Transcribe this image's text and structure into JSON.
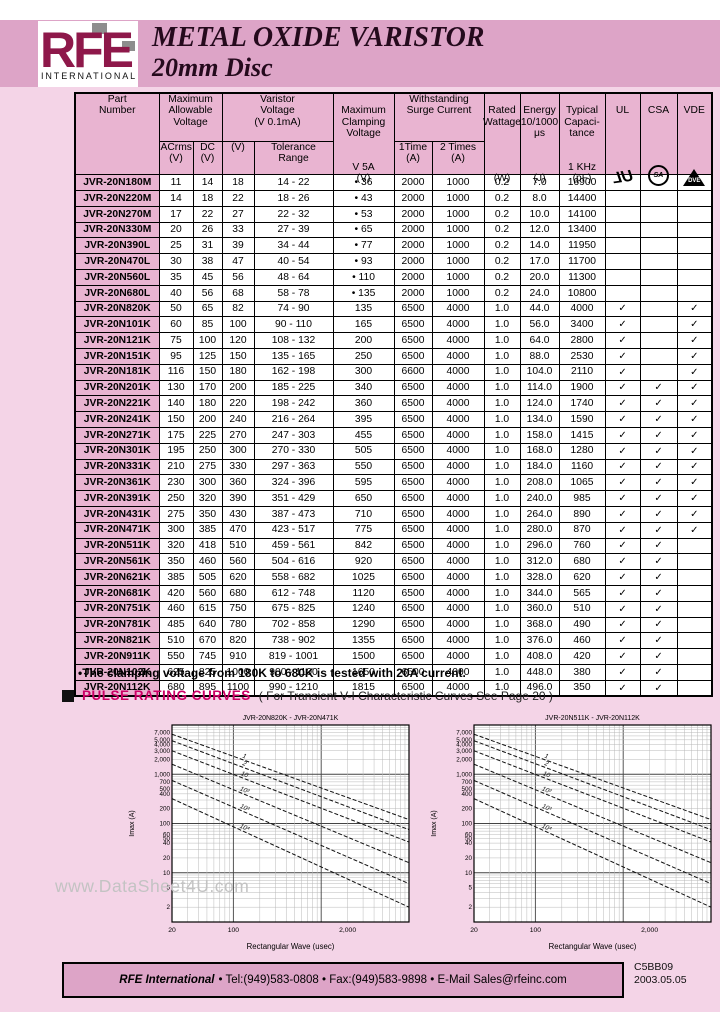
{
  "page": {
    "bg": "#f4d4e7",
    "band_bg": "#dda4c7",
    "accent": "#cc0066",
    "logo_color": "#8e184a",
    "logo_gray": "#8d8d8d"
  },
  "header": {
    "logo_text": "RFE",
    "logo_sub": "INTERNATIONAL",
    "title_line1": "METAL OXIDE VARISTOR",
    "title_line2": "20mm Disc"
  },
  "table": {
    "headers": {
      "part": "Part\nNumber",
      "max_allow": "Maximum\nAllowable\nVoltage",
      "varistor": "Varistor\nVoltage\n(V 0.1mA)",
      "clamping": "Maximum\nClamping\nVoltage",
      "clamp_sub": "V 5A\n(V)",
      "withstanding": "Withstanding\nSurge Current",
      "rated": "Rated\nWattage",
      "rated_unit": "(W)",
      "energy": "Energy\n10/1000\nμs",
      "energy_unit": "(J)",
      "typical": "Typical\nCapaci-\ntance",
      "typical_unit": "1 KHz\n(pF)",
      "acrms": "ACrms\n(V)",
      "dc": "DC\n(V)",
      "v": "(V)",
      "tolerance": "Tolerance\nRange",
      "time1": "1Time\n(A)",
      "time2": "2 Times\n(A)",
      "ul": "UL",
      "csa": "CSA",
      "vde": "VDE"
    },
    "icons": {
      "ul_logo": "UL",
      "csa_logo": "SA",
      "vde_logo": "DVE"
    },
    "rows": [
      [
        "JVR-20N180M",
        "11",
        "14",
        "18",
        "14 - 22",
        "•  36",
        "2000",
        "1000",
        "0.2",
        "7.0",
        "16900",
        "",
        "",
        ""
      ],
      [
        "JVR-20N220M",
        "14",
        "18",
        "22",
        "18 - 26",
        "•  43",
        "2000",
        "1000",
        "0.2",
        "8.0",
        "14400",
        "",
        "",
        ""
      ],
      [
        "JVR-20N270M",
        "17",
        "22",
        "27",
        "22 - 32",
        "•  53",
        "2000",
        "1000",
        "0.2",
        "10.0",
        "14100",
        "",
        "",
        ""
      ],
      [
        "JVR-20N330M",
        "20",
        "26",
        "33",
        "27 - 39",
        "•  65",
        "2000",
        "1000",
        "0.2",
        "12.0",
        "13400",
        "",
        "",
        ""
      ],
      [
        "JVR-20N390L",
        "25",
        "31",
        "39",
        "34 - 44",
        "•  77",
        "2000",
        "1000",
        "0.2",
        "14.0",
        "11950",
        "",
        "",
        ""
      ],
      [
        "JVR-20N470L",
        "30",
        "38",
        "47",
        "40 - 54",
        "•  93",
        "2000",
        "1000",
        "0.2",
        "17.0",
        "11700",
        "",
        "",
        ""
      ],
      [
        "JVR-20N560L",
        "35",
        "45",
        "56",
        "48 - 64",
        "•  110",
        "2000",
        "1000",
        "0.2",
        "20.0",
        "11300",
        "",
        "",
        ""
      ],
      [
        "JVR-20N680L",
        "40",
        "56",
        "68",
        "58 - 78",
        "•  135",
        "2000",
        "1000",
        "0.2",
        "24.0",
        "10800",
        "",
        "",
        ""
      ],
      [
        "JVR-20N820K",
        "50",
        "65",
        "82",
        "74 - 90",
        "135",
        "6500",
        "4000",
        "1.0",
        "44.0",
        "4000",
        "✓",
        "",
        "✓"
      ],
      [
        "JVR-20N101K",
        "60",
        "85",
        "100",
        "90 - 110",
        "165",
        "6500",
        "4000",
        "1.0",
        "56.0",
        "3400",
        "✓",
        "",
        "✓"
      ],
      [
        "JVR-20N121K",
        "75",
        "100",
        "120",
        "108 - 132",
        "200",
        "6500",
        "4000",
        "1.0",
        "64.0",
        "2800",
        "✓",
        "",
        "✓"
      ],
      [
        "JVR-20N151K",
        "95",
        "125",
        "150",
        "135 - 165",
        "250",
        "6500",
        "4000",
        "1.0",
        "88.0",
        "2530",
        "✓",
        "",
        "✓"
      ],
      [
        "JVR-20N181K",
        "116",
        "150",
        "180",
        "162 - 198",
        "300",
        "6600",
        "4000",
        "1.0",
        "104.0",
        "2110",
        "✓",
        "",
        "✓"
      ],
      [
        "JVR-20N201K",
        "130",
        "170",
        "200",
        "185 - 225",
        "340",
        "6500",
        "4000",
        "1.0",
        "114.0",
        "1900",
        "✓",
        "✓",
        "✓"
      ],
      [
        "JVR-20N221K",
        "140",
        "180",
        "220",
        "198 - 242",
        "360",
        "6500",
        "4000",
        "1.0",
        "124.0",
        "1740",
        "✓",
        "✓",
        "✓"
      ],
      [
        "JVR-20N241K",
        "150",
        "200",
        "240",
        "216 - 264",
        "395",
        "6500",
        "4000",
        "1.0",
        "134.0",
        "1590",
        "✓",
        "✓",
        "✓"
      ],
      [
        "JVR-20N271K",
        "175",
        "225",
        "270",
        "247 - 303",
        "455",
        "6500",
        "4000",
        "1.0",
        "158.0",
        "1415",
        "✓",
        "✓",
        "✓"
      ],
      [
        "JVR-20N301K",
        "195",
        "250",
        "300",
        "270 - 330",
        "505",
        "6500",
        "4000",
        "1.0",
        "168.0",
        "1280",
        "✓",
        "✓",
        "✓"
      ],
      [
        "JVR-20N331K",
        "210",
        "275",
        "330",
        "297 - 363",
        "550",
        "6500",
        "4000",
        "1.0",
        "184.0",
        "1160",
        "✓",
        "✓",
        "✓"
      ],
      [
        "JVR-20N361K",
        "230",
        "300",
        "360",
        "324 - 396",
        "595",
        "6500",
        "4000",
        "1.0",
        "208.0",
        "1065",
        "✓",
        "✓",
        "✓"
      ],
      [
        "JVR-20N391K",
        "250",
        "320",
        "390",
        "351 - 429",
        "650",
        "6500",
        "4000",
        "1.0",
        "240.0",
        "985",
        "✓",
        "✓",
        "✓"
      ],
      [
        "JVR-20N431K",
        "275",
        "350",
        "430",
        "387 - 473",
        "710",
        "6500",
        "4000",
        "1.0",
        "264.0",
        "890",
        "✓",
        "✓",
        "✓"
      ],
      [
        "JVR-20N471K",
        "300",
        "385",
        "470",
        "423 - 517",
        "775",
        "6500",
        "4000",
        "1.0",
        "280.0",
        "870",
        "✓",
        "✓",
        "✓"
      ],
      [
        "JVR-20N511K",
        "320",
        "418",
        "510",
        "459 - 561",
        "842",
        "6500",
        "4000",
        "1.0",
        "296.0",
        "760",
        "✓",
        "✓",
        ""
      ],
      [
        "JVR-20N561K",
        "350",
        "460",
        "560",
        "504 - 616",
        "920",
        "6500",
        "4000",
        "1.0",
        "312.0",
        "680",
        "✓",
        "✓",
        ""
      ],
      [
        "JVR-20N621K",
        "385",
        "505",
        "620",
        "558 - 682",
        "1025",
        "6500",
        "4000",
        "1.0",
        "328.0",
        "620",
        "✓",
        "✓",
        ""
      ],
      [
        "JVR-20N681K",
        "420",
        "560",
        "680",
        "612 - 748",
        "1120",
        "6500",
        "4000",
        "1.0",
        "344.0",
        "565",
        "✓",
        "✓",
        ""
      ],
      [
        "JVR-20N751K",
        "460",
        "615",
        "750",
        "675 - 825",
        "1240",
        "6500",
        "4000",
        "1.0",
        "360.0",
        "510",
        "✓",
        "✓",
        ""
      ],
      [
        "JVR-20N781K",
        "485",
        "640",
        "780",
        "702 - 858",
        "1290",
        "6500",
        "4000",
        "1.0",
        "368.0",
        "490",
        "✓",
        "✓",
        ""
      ],
      [
        "JVR-20N821K",
        "510",
        "670",
        "820",
        "738 - 902",
        "1355",
        "6500",
        "4000",
        "1.0",
        "376.0",
        "460",
        "✓",
        "✓",
        ""
      ],
      [
        "JVR-20N911K",
        "550",
        "745",
        "910",
        "819 - 1001",
        "1500",
        "6500",
        "4000",
        "1.0",
        "408.0",
        "420",
        "✓",
        "✓",
        ""
      ],
      [
        "JVR-20N102K",
        "625",
        "825",
        "1000",
        "900 - 1100",
        "1650",
        "6500",
        "4000",
        "1.0",
        "448.0",
        "380",
        "✓",
        "✓",
        ""
      ],
      [
        "JVR-20N112K",
        "680",
        "895",
        "1100",
        "990 - 1210",
        "1815",
        "6500",
        "4000",
        "1.0",
        "496.0",
        "350",
        "✓",
        "✓",
        ""
      ]
    ]
  },
  "footnote": "•The clamping voltage from 180K to 680K is tested with 20A current.",
  "section": {
    "title": "PULSE RATING CURVES",
    "subtitle": "( For Transient V-I Characteristic Curves See Page 20 )"
  },
  "watermark": "www.DataSheet4U.com",
  "chart_data": [
    {
      "type": "line",
      "title": "JVR-20N820K - JVR-20N471K",
      "xlabel": "Rectangular Wave (usec)",
      "ylabel": "Imax (A)",
      "x_ticks": [
        "20",
        "100",
        "2,000"
      ],
      "y_ticks": [
        "7,000",
        "5,000",
        "4,000",
        "3,000",
        "2,000",
        "1,000",
        "700",
        "500",
        "400",
        "200",
        "100",
        "60",
        "50",
        "40",
        "20",
        "10",
        "5",
        "2"
      ],
      "xlim_log": [
        20,
        10000
      ],
      "ylim_log": [
        1,
        10000
      ],
      "grid": "log",
      "legend": "none",
      "series": [
        {
          "name": "1",
          "x": [
            20,
            10000
          ],
          "y": [
            6500,
            120
          ]
        },
        {
          "name": "2",
          "x": [
            20,
            10000
          ],
          "y": [
            4800,
            75
          ]
        },
        {
          "name": "10",
          "x": [
            20,
            10000
          ],
          "y": [
            3000,
            42
          ]
        },
        {
          "name": "10²",
          "x": [
            20,
            10000
          ],
          "y": [
            1600,
            16
          ]
        },
        {
          "name": "10³",
          "x": [
            20,
            10000
          ],
          "y": [
            750,
            6
          ]
        },
        {
          "name": "10⁴",
          "x": [
            20,
            10000
          ],
          "y": [
            320,
            2
          ]
        }
      ]
    },
    {
      "type": "line",
      "title": "JVR-20N511K - JVR-20N112K",
      "xlabel": "Rectangular Wave (usec)",
      "ylabel": "Imax (A)",
      "x_ticks": [
        "20",
        "100",
        "2,000"
      ],
      "y_ticks": [
        "7,000",
        "5,000",
        "4,000",
        "3,000",
        "2,000",
        "1,000",
        "700",
        "500",
        "400",
        "200",
        "100",
        "60",
        "50",
        "40",
        "20",
        "10",
        "5",
        "2"
      ],
      "xlim_log": [
        20,
        10000
      ],
      "ylim_log": [
        1,
        10000
      ],
      "grid": "log",
      "legend": "none",
      "series": [
        {
          "name": "1",
          "x": [
            20,
            10000
          ],
          "y": [
            6500,
            120
          ]
        },
        {
          "name": "2",
          "x": [
            20,
            10000
          ],
          "y": [
            4800,
            75
          ]
        },
        {
          "name": "10",
          "x": [
            20,
            10000
          ],
          "y": [
            3000,
            42
          ]
        },
        {
          "name": "10²",
          "x": [
            20,
            10000
          ],
          "y": [
            1600,
            16
          ]
        },
        {
          "name": "10³",
          "x": [
            20,
            10000
          ],
          "y": [
            750,
            6
          ]
        },
        {
          "name": "10⁴",
          "x": [
            20,
            10000
          ],
          "y": [
            320,
            2
          ]
        }
      ]
    }
  ],
  "footer": {
    "company": "RFE International",
    "contact": "• Tel:(949)583-0808 • Fax:(949)583-9898 • E-Mail Sales@rfeinc.com",
    "doc_code": "C5BB09",
    "date": "2003.05.05"
  }
}
